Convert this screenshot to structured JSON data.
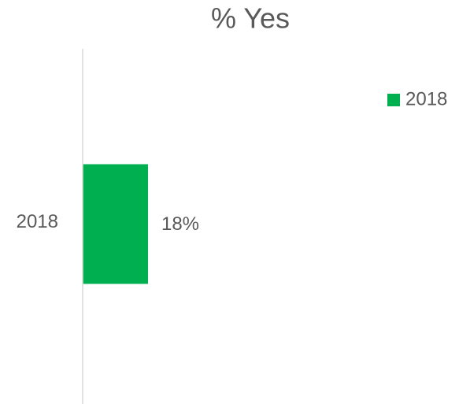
{
  "chart_data": {
    "type": "bar",
    "orientation": "horizontal",
    "title": "% Yes",
    "categories": [
      "2018"
    ],
    "series": [
      {
        "name": "2018",
        "color": "#00b050",
        "values": [
          18
        ],
        "value_labels": [
          "18%"
        ]
      }
    ],
    "xlim": [
      0,
      100
    ],
    "legend": "top-right"
  }
}
